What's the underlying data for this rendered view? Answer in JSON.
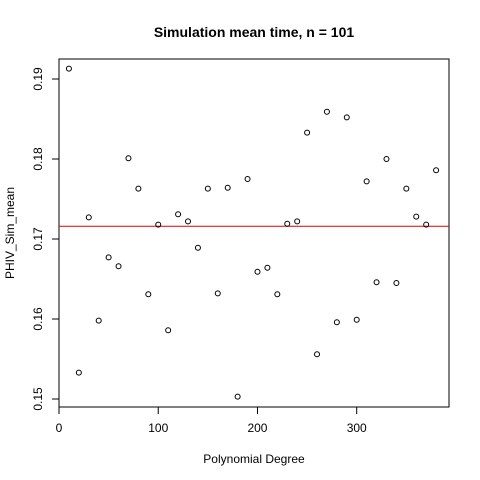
{
  "chart_data": {
    "type": "scatter",
    "title": "Simulation mean time, n =  101",
    "xlabel": "Polynomial Degree",
    "ylabel": "PHIV_Sim_mean",
    "xlim": [
      0,
      393
    ],
    "ylim": [
      0.149,
      0.1925
    ],
    "xticks": [
      0,
      100,
      200,
      300
    ],
    "yticks": [
      0.15,
      0.16,
      0.17,
      0.18,
      0.19
    ],
    "xtick_labels": [
      "0",
      "100",
      "200",
      "300"
    ],
    "ytick_labels": [
      "0.15",
      "0.16",
      "0.17",
      "0.18",
      "0.19"
    ],
    "grid": false,
    "hline": {
      "y": 0.1716,
      "color": "#e00000"
    },
    "points": [
      {
        "x": 10,
        "y": 0.1913
      },
      {
        "x": 20,
        "y": 0.1533
      },
      {
        "x": 30,
        "y": 0.1727
      },
      {
        "x": 40,
        "y": 0.1598
      },
      {
        "x": 50,
        "y": 0.1677
      },
      {
        "x": 60,
        "y": 0.1666
      },
      {
        "x": 70,
        "y": 0.1801
      },
      {
        "x": 80,
        "y": 0.1763
      },
      {
        "x": 90,
        "y": 0.1631
      },
      {
        "x": 100,
        "y": 0.1718
      },
      {
        "x": 110,
        "y": 0.1586
      },
      {
        "x": 120,
        "y": 0.1731
      },
      {
        "x": 130,
        "y": 0.1722
      },
      {
        "x": 140,
        "y": 0.1689
      },
      {
        "x": 150,
        "y": 0.1763
      },
      {
        "x": 160,
        "y": 0.1632
      },
      {
        "x": 170,
        "y": 0.1764
      },
      {
        "x": 180,
        "y": 0.1503
      },
      {
        "x": 190,
        "y": 0.1775
      },
      {
        "x": 200,
        "y": 0.1659
      },
      {
        "x": 210,
        "y": 0.1664
      },
      {
        "x": 220,
        "y": 0.1631
      },
      {
        "x": 230,
        "y": 0.1719
      },
      {
        "x": 240,
        "y": 0.1722
      },
      {
        "x": 250,
        "y": 0.1833
      },
      {
        "x": 260,
        "y": 0.1556
      },
      {
        "x": 270,
        "y": 0.1859
      },
      {
        "x": 280,
        "y": 0.1596
      },
      {
        "x": 290,
        "y": 0.1852
      },
      {
        "x": 300,
        "y": 0.1599
      },
      {
        "x": 310,
        "y": 0.1772
      },
      {
        "x": 320,
        "y": 0.1646
      },
      {
        "x": 330,
        "y": 0.18
      },
      {
        "x": 340,
        "y": 0.1645
      },
      {
        "x": 350,
        "y": 0.1763
      },
      {
        "x": 360,
        "y": 0.1728
      },
      {
        "x": 370,
        "y": 0.1718
      },
      {
        "x": 380,
        "y": 0.1786
      }
    ],
    "colors": {
      "points": "#000000",
      "hline": "#e00000",
      "axes": "#000000"
    }
  }
}
